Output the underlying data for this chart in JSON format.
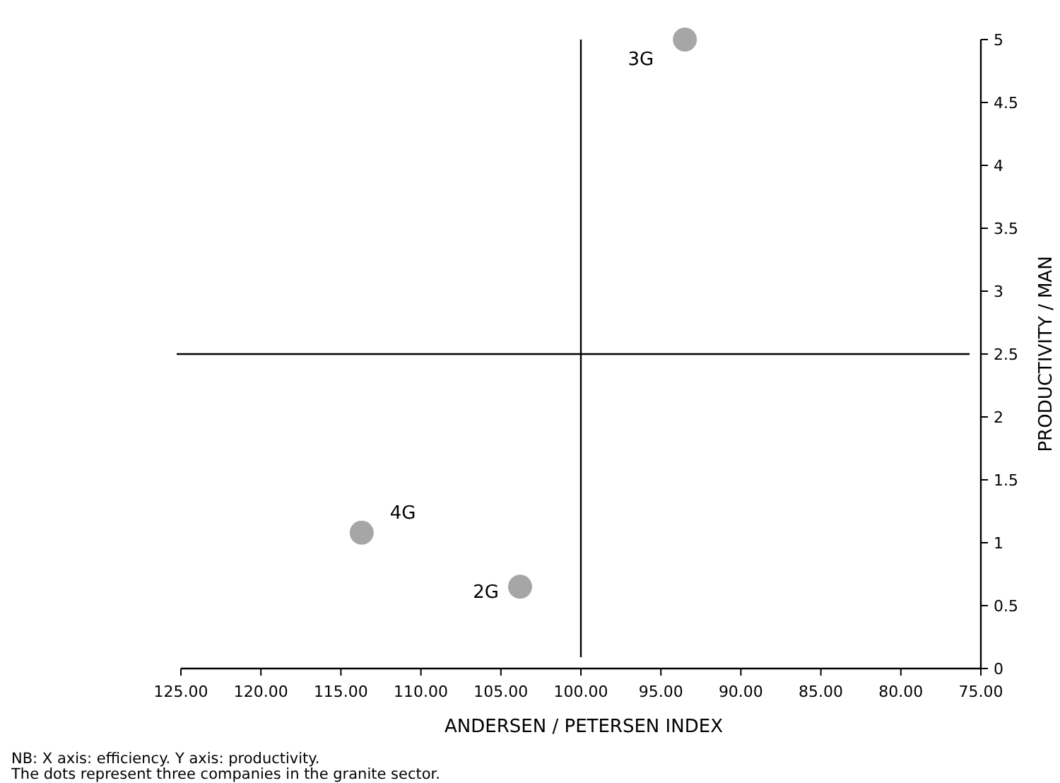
{
  "chart_data": {
    "type": "scatter",
    "xlabel": "ANDERSEN / PETERSEN INDEX",
    "ylabel": "PRODUCTIVITY / MAN",
    "x": [
      93.5,
      113.7,
      103.8
    ],
    "values": [
      5.0,
      1.08,
      0.65
    ],
    "color": "#a6a6a6",
    "marker": "circle",
    "xlim": [
      125,
      75
    ],
    "xticks": [
      {
        "value": 125,
        "label": "125.00"
      },
      {
        "value": 120,
        "label": "120.00"
      },
      {
        "value": 115,
        "label": "115.00"
      },
      {
        "value": 110,
        "label": "110.00"
      },
      {
        "value": 105,
        "label": "105.00"
      },
      {
        "value": 100,
        "label": "100.00"
      },
      {
        "value": 95,
        "label": "95.00"
      },
      {
        "value": 90,
        "label": "90.00"
      },
      {
        "value": 85,
        "label": "85.00"
      },
      {
        "value": 80,
        "label": "80.00"
      },
      {
        "value": 75,
        "label": "75.00"
      }
    ],
    "ylim": [
      0,
      5
    ],
    "yticks": [
      0,
      0.5,
      1,
      1.5,
      2,
      2.5,
      3,
      3.5,
      4,
      4.5,
      5
    ],
    "ref_lines": [
      {
        "axis": "x",
        "value": 100,
        "color": "#000000"
      },
      {
        "axis": "y",
        "value": 2.5,
        "color": "#000000"
      }
    ],
    "annotations": [
      {
        "text": "3G",
        "x": 93.5,
        "y": 5.0
      },
      {
        "text": "4G",
        "x": 113.7,
        "y": 1.08
      },
      {
        "text": "2G",
        "x": 103.8,
        "y": 0.65
      },
      "NB: X axis: efficiency. Y axis: productivity.",
      "The dots represent three companies in the granite sector."
    ],
    "grid": false
  }
}
